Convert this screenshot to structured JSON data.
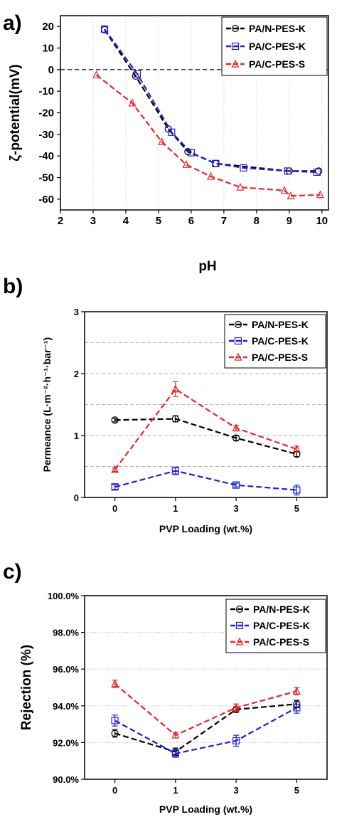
{
  "panels": {
    "a": "a)",
    "b": "b)",
    "c": "c)"
  },
  "legend_labels": [
    "PA/N-PES-K",
    "PA/C-PES-K",
    "PA/C-PES-S"
  ],
  "chart_data": [
    {
      "id": "a",
      "type": "line",
      "xlabel": "pH",
      "ylabel": "ζ-potential(mV)",
      "xlim": [
        2,
        10.2
      ],
      "ylim": [
        -65,
        25
      ],
      "xticks": [
        2,
        3,
        4,
        5,
        6,
        7,
        8,
        9,
        10
      ],
      "yticks": [
        20,
        10,
        0,
        -10,
        -20,
        -30,
        -40,
        -50,
        -60
      ],
      "grid": "vertical",
      "reference_line_y": 0,
      "legend_position": "top-right",
      "series": [
        {
          "name": "PA/N-PES-K",
          "color": "#000000",
          "marker": "circle",
          "points": [
            [
              3.35,
              18.5
            ],
            [
              4.3,
              -3
            ],
            [
              5.3,
              -27.5
            ],
            [
              5.9,
              -38
            ],
            [
              6.75,
              -43.5
            ],
            [
              9,
              -47
            ],
            [
              9.9,
              -47
            ]
          ]
        },
        {
          "name": "PA/C-PES-K",
          "color": "#1f1fd6",
          "marker": "square",
          "points": [
            [
              3.35,
              18.8
            ],
            [
              4.35,
              -2
            ],
            [
              5.4,
              -29
            ],
            [
              6.0,
              -38.5
            ],
            [
              6.75,
              -43.5
            ],
            [
              7.6,
              -45.5
            ],
            [
              8.95,
              -47
            ],
            [
              9.85,
              -47.5
            ]
          ]
        },
        {
          "name": "PA/C-PES-S",
          "color": "#e8262b",
          "marker": "triangle",
          "points": [
            [
              3.1,
              -2.5
            ],
            [
              4.2,
              -15.5
            ],
            [
              5.1,
              -33.5
            ],
            [
              5.85,
              -44
            ],
            [
              6.6,
              -49.5
            ],
            [
              7.5,
              -54.5
            ],
            [
              8.85,
              -56
            ],
            [
              9.05,
              -58.5
            ],
            [
              9.95,
              -58
            ]
          ]
        }
      ]
    },
    {
      "id": "b",
      "type": "line",
      "xlabel": "PVP Loading (wt.%)",
      "ylabel": "Permeance (L·m⁻²·h⁻¹·bar⁻¹)",
      "categories": [
        "0",
        "1",
        "3",
        "5"
      ],
      "ylim": [
        0,
        3
      ],
      "yticks": [
        0,
        1,
        2,
        3
      ],
      "grid": "dashed-horizontal",
      "grid_lines": [
        0.5,
        1,
        1.5,
        2,
        2.5
      ],
      "legend_position": "top-right",
      "series": [
        {
          "name": "PA/N-PES-K",
          "color": "#000000",
          "marker": "circle",
          "values": [
            1.25,
            1.27,
            0.96,
            0.7
          ],
          "errors": [
            0.03,
            0.05,
            0.04,
            0.04
          ]
        },
        {
          "name": "PA/C-PES-K",
          "color": "#1f1fd6",
          "marker": "square",
          "values": [
            0.17,
            0.43,
            0.2,
            0.12
          ],
          "errors": [
            0.04,
            0.06,
            0.03,
            0.08
          ]
        },
        {
          "name": "PA/C-PES-S",
          "color": "#e8262b",
          "marker": "triangle",
          "values": [
            0.45,
            1.75,
            1.12,
            0.78
          ],
          "errors": [
            0.03,
            0.12,
            0.04,
            0.05
          ]
        }
      ]
    },
    {
      "id": "c",
      "type": "line",
      "xlabel": "PVP Loading (wt.%)",
      "ylabel": "Rejection (%)",
      "categories": [
        "0",
        "1",
        "3",
        "5"
      ],
      "ylim": [
        90,
        100
      ],
      "yticks": [
        90,
        92,
        94,
        96,
        98,
        100
      ],
      "ytick_labels": [
        "90.0%",
        "92.0%",
        "94.0%",
        "96.0%",
        "98.0%",
        "100.0%"
      ],
      "grid": "dotted-horizontal",
      "legend_position": "top-right",
      "series": [
        {
          "name": "PA/N-PES-K",
          "color": "#000000",
          "marker": "circle",
          "values": [
            92.5,
            91.5,
            93.8,
            94.1
          ],
          "errors": [
            0.2,
            0.2,
            0.15,
            0.2
          ]
        },
        {
          "name": "PA/C-PES-K",
          "color": "#1f1fd6",
          "marker": "square",
          "values": [
            93.2,
            91.4,
            92.1,
            93.9
          ],
          "errors": [
            0.3,
            0.2,
            0.3,
            0.3
          ]
        },
        {
          "name": "PA/C-PES-S",
          "color": "#e8262b",
          "marker": "triangle",
          "values": [
            95.2,
            92.4,
            93.9,
            94.8
          ],
          "errors": [
            0.2,
            0.15,
            0.2,
            0.2
          ]
        }
      ]
    }
  ]
}
